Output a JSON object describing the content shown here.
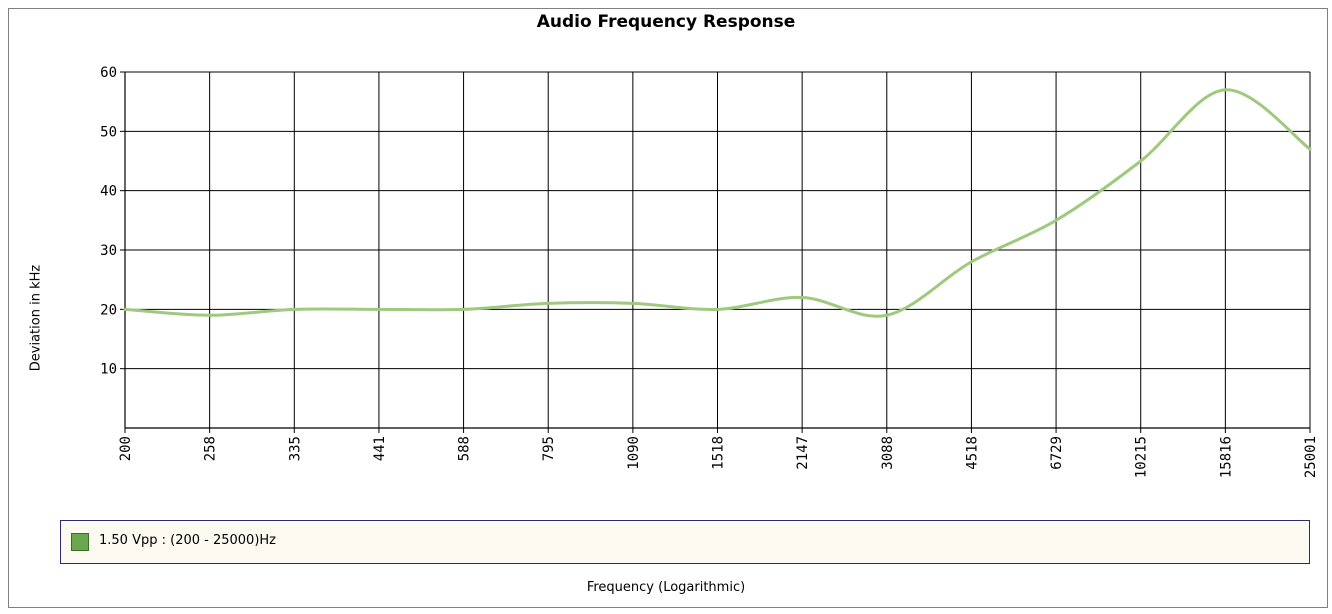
{
  "chart_data": {
    "type": "line",
    "title": "Audio Frequency Response",
    "xlabel": "Frequency (Logarithmic)",
    "ylabel": "Deviation in kHz",
    "categories": [
      "200",
      "258",
      "335",
      "441",
      "588",
      "795",
      "1090",
      "1518",
      "2147",
      "3088",
      "4518",
      "6729",
      "10215",
      "15816",
      "25001"
    ],
    "series": [
      {
        "name": "1.50 Vpp : (200 - 25000)Hz",
        "color": "#9ec97f",
        "values": [
          20,
          19,
          20,
          20,
          20,
          21,
          21,
          20,
          22,
          19,
          28,
          35,
          45,
          57,
          47
        ]
      }
    ],
    "yticks": [
      10,
      20,
      30,
      40,
      50,
      60
    ],
    "ylim": [
      0,
      60
    ],
    "grid": true,
    "legend_position": "bottom",
    "legend_swatch_color": "#6aa84f"
  }
}
